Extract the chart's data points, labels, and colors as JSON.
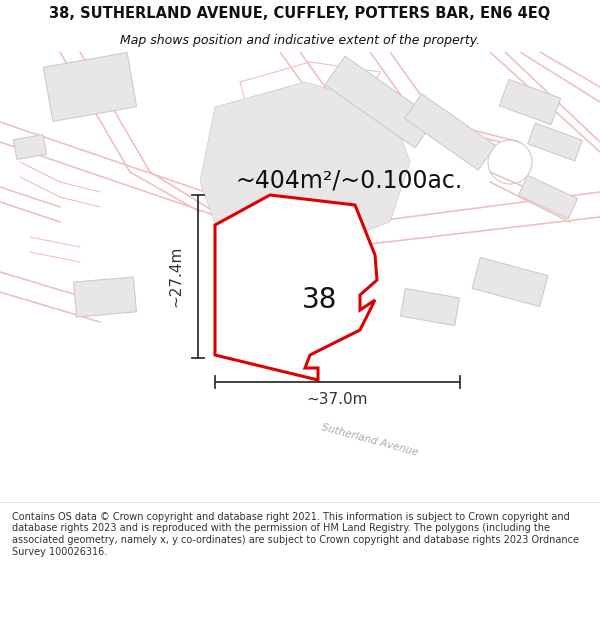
{
  "title": "38, SUTHERLAND AVENUE, CUFFLEY, POTTERS BAR, EN6 4EQ",
  "subtitle": "Map shows position and indicative extent of the property.",
  "area_label": "~404m²/~0.100ac.",
  "width_label": "~37.0m",
  "height_label": "~27.4m",
  "number_label": "38",
  "footer": "Contains OS data © Crown copyright and database right 2021. This information is subject to Crown copyright and database rights 2023 and is reproduced with the permission of HM Land Registry. The polygons (including the associated geometry, namely x, y co-ordinates) are subject to Crown copyright and database rights 2023 Ordnance Survey 100026316.",
  "bg_color": "#ffffff",
  "map_bg": "#ffffff",
  "road_line_color": "#f0c0c0",
  "building_fill": "#e8e6e6",
  "building_edge": "#cccccc",
  "plot_edge_color": "#dd0000",
  "plot_fill": "#ffffff",
  "dim_color": "#333333",
  "text_color": "#111111",
  "title_fontsize": 10.5,
  "subtitle_fontsize": 9,
  "footer_fontsize": 7.0,
  "area_fontsize": 17,
  "number_fontsize": 20,
  "dim_label_fontsize": 11,
  "street_label_fontsize": 7.5
}
